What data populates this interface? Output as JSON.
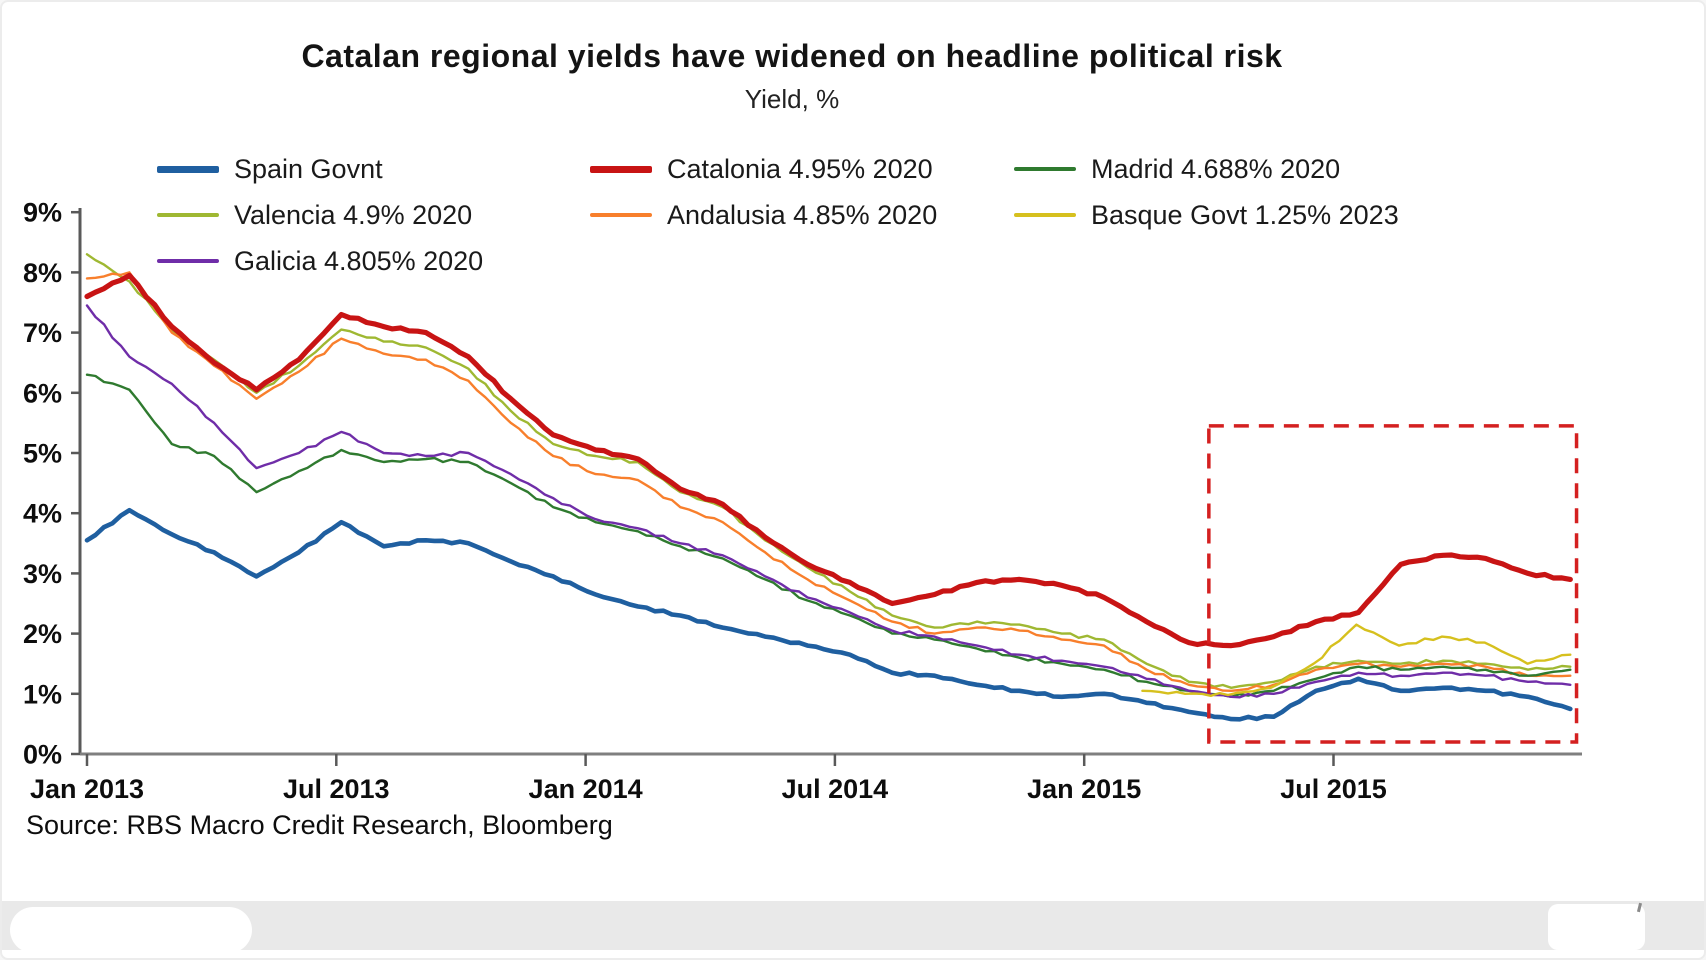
{
  "chart": {
    "title": "Catalan regional yields have widened on headline political risk",
    "subtitle": "Yield, %",
    "source": "Source: RBS Macro Credit Research, Bloomberg"
  },
  "chart_data": {
    "type": "line",
    "title": "Catalan regional yields have widened on headline political risk",
    "ylabel": "Yield, %",
    "ylim": [
      0,
      9
    ],
    "grid": false,
    "legend_position": "top",
    "x_unit": "months since Jan 2013",
    "x_range": [
      0,
      35.7
    ],
    "x_ticks": [
      {
        "m": 0,
        "label": "Jan 2013"
      },
      {
        "m": 6,
        "label": "Jul 2013"
      },
      {
        "m": 12,
        "label": "Jan 2014"
      },
      {
        "m": 18,
        "label": "Jul 2014"
      },
      {
        "m": 24,
        "label": "Jan 2015"
      },
      {
        "m": 30,
        "label": "Jul 2015"
      }
    ],
    "y_ticks": [
      "0%",
      "1%",
      "2%",
      "3%",
      "4%",
      "5%",
      "6%",
      "7%",
      "8%",
      "9%"
    ],
    "series": [
      {
        "name": "Spain Govnt",
        "color": "#1f5fa0",
        "width": 4.6,
        "values": [
          3.55,
          4.05,
          3.65,
          3.35,
          2.95,
          3.35,
          3.85,
          3.45,
          3.55,
          3.5,
          3.2,
          2.95,
          2.65,
          2.45,
          2.3,
          2.1,
          1.95,
          1.8,
          1.65,
          1.35,
          1.3,
          1.15,
          1.05,
          0.95,
          1.0,
          0.85,
          0.7,
          0.58,
          0.62,
          1.05,
          1.25,
          1.05,
          1.1,
          1.05,
          0.95,
          0.75
        ]
      },
      {
        "name": "Catalonia 4.95% 2020",
        "color": "#c81414",
        "width": 5.2,
        "values": [
          7.6,
          7.95,
          7.1,
          6.5,
          6.05,
          6.55,
          7.3,
          7.1,
          7.0,
          6.6,
          5.9,
          5.3,
          5.05,
          4.9,
          4.4,
          4.15,
          3.6,
          3.15,
          2.85,
          2.5,
          2.65,
          2.85,
          2.9,
          2.8,
          2.6,
          2.2,
          1.85,
          1.8,
          1.95,
          2.2,
          2.35,
          3.15,
          3.3,
          3.25,
          3.0,
          2.9
        ]
      },
      {
        "name": "Madrid 4.688% 2020",
        "color": "#2f7a2f",
        "width": 2.4,
        "values": [
          6.3,
          6.05,
          5.15,
          4.95,
          4.35,
          4.7,
          5.05,
          4.85,
          4.9,
          4.85,
          4.5,
          4.1,
          3.85,
          3.7,
          3.45,
          3.25,
          2.9,
          2.55,
          2.3,
          2.0,
          1.9,
          1.75,
          1.6,
          1.5,
          1.4,
          1.2,
          1.05,
          0.95,
          1.05,
          1.25,
          1.45,
          1.4,
          1.45,
          1.4,
          1.3,
          1.4
        ]
      },
      {
        "name": "Valencia 4.9% 2020",
        "color": "#9fb832",
        "width": 2.4,
        "values": [
          8.3,
          7.85,
          7.05,
          6.55,
          6.0,
          6.45,
          7.05,
          6.85,
          6.75,
          6.4,
          5.7,
          5.15,
          4.95,
          4.85,
          4.35,
          4.1,
          3.55,
          3.1,
          2.7,
          2.3,
          2.1,
          2.2,
          2.15,
          2.0,
          1.9,
          1.5,
          1.2,
          1.1,
          1.2,
          1.45,
          1.55,
          1.5,
          1.55,
          1.5,
          1.4,
          1.45
        ]
      },
      {
        "name": "Andalusia 4.85% 2020",
        "color": "#f87f2c",
        "width": 2.4,
        "values": [
          7.9,
          8.0,
          7.0,
          6.45,
          5.9,
          6.35,
          6.9,
          6.65,
          6.55,
          6.2,
          5.5,
          4.95,
          4.65,
          4.55,
          4.1,
          3.85,
          3.35,
          2.9,
          2.55,
          2.2,
          2.0,
          2.1,
          2.05,
          1.9,
          1.8,
          1.4,
          1.15,
          1.05,
          1.15,
          1.4,
          1.5,
          1.45,
          1.5,
          1.45,
          1.3,
          1.3
        ]
      },
      {
        "name": "Basque Govt 1.25% 2023",
        "color": "#d6c01e",
        "width": 2.4,
        "start_month": 25.4,
        "values": [
          1.05,
          1.0,
          0.98,
          1.1,
          1.5,
          2.15,
          1.8,
          1.95,
          1.85,
          1.5,
          1.65
        ]
      },
      {
        "name": "Galicia 4.805% 2020",
        "color": "#6f2da8",
        "width": 2.4,
        "values": [
          7.45,
          6.6,
          6.15,
          5.5,
          4.75,
          5.0,
          5.35,
          5.0,
          4.95,
          5.0,
          4.65,
          4.25,
          3.9,
          3.75,
          3.5,
          3.3,
          2.95,
          2.6,
          2.35,
          2.05,
          1.95,
          1.8,
          1.65,
          1.55,
          1.45,
          1.25,
          1.05,
          0.95,
          1.0,
          1.2,
          1.35,
          1.3,
          1.35,
          1.3,
          1.2,
          1.15
        ]
      }
    ],
    "draw_order": [
      3,
      4,
      2,
      6,
      5,
      0,
      1
    ],
    "annotation_box": {
      "x0_month": 27.0,
      "x1_month": 35.85,
      "y0": 0.2,
      "y1": 5.45,
      "color": "#d42020",
      "style": "dashed"
    }
  },
  "legend": {
    "items": [
      {
        "series": 0,
        "row": 0,
        "col": 0
      },
      {
        "series": 1,
        "row": 0,
        "col": 1
      },
      {
        "series": 2,
        "row": 0,
        "col": 2
      },
      {
        "series": 3,
        "row": 1,
        "col": 0
      },
      {
        "series": 4,
        "row": 1,
        "col": 1
      },
      {
        "series": 5,
        "row": 1,
        "col": 2
      },
      {
        "series": 6,
        "row": 2,
        "col": 0
      }
    ]
  }
}
